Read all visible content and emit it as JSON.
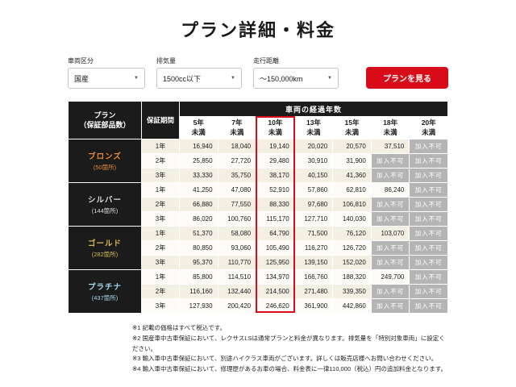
{
  "page": {
    "title": "プラン詳細・料金"
  },
  "colors": {
    "accent": "#d70c18",
    "header_bg": "#1b1b1b",
    "row_beige": "#f4efe3",
    "unavailable_bg": "#b5b5b5"
  },
  "icons": {
    "chevron_down": "▼"
  },
  "filters": [
    {
      "label": "車両区分",
      "value": "国産"
    },
    {
      "label": "排気量",
      "value": "1500cc以下"
    },
    {
      "label": "走行距離",
      "value": "～150,000km"
    }
  ],
  "view_plan_button": "プランを見る",
  "table": {
    "plan_header": "プラン\n（保証部品数）",
    "period_header": "保証期間",
    "age_header": "車両の経過年数",
    "age_columns": [
      "5年未満",
      "7年未満",
      "10年未満",
      "13年未満",
      "15年未満",
      "18年未満",
      "20年未満"
    ],
    "highlighted_column_index": 2,
    "unavailable_label": "加入不可",
    "plans": [
      {
        "name": "ブロンズ",
        "parts": "(50箇所)",
        "color": "#e6883a",
        "rows": [
          {
            "period": "1年",
            "values": [
              "16,940",
              "18,040",
              "19,140",
              "20,020",
              "20,570",
              "37,510",
              "加入不可"
            ]
          },
          {
            "period": "2年",
            "values": [
              "25,850",
              "27,720",
              "29,480",
              "30,910",
              "31,900",
              "加入不可",
              "加入不可"
            ]
          },
          {
            "period": "3年",
            "values": [
              "33,330",
              "35,750",
              "38,170",
              "40,150",
              "41,360",
              "加入不可",
              "加入不可"
            ]
          }
        ]
      },
      {
        "name": "シルバー",
        "parts": "(144箇所)",
        "color": "#dcdcdc",
        "rows": [
          {
            "period": "1年",
            "values": [
              "41,250",
              "47,080",
              "52,910",
              "57,860",
              "62,810",
              "86,240",
              "加入不可"
            ]
          },
          {
            "period": "2年",
            "values": [
              "66,880",
              "77,550",
              "88,330",
              "97,680",
              "106,810",
              "加入不可",
              "加入不可"
            ]
          },
          {
            "period": "3年",
            "values": [
              "86,020",
              "100,760",
              "115,170",
              "127,710",
              "140,030",
              "加入不可",
              "加入不可"
            ]
          }
        ]
      },
      {
        "name": "ゴールド",
        "parts": "(282箇所)",
        "color": "#d9b64b",
        "rows": [
          {
            "period": "1年",
            "values": [
              "51,370",
              "58,080",
              "64,790",
              "71,500",
              "76,120",
              "103,070",
              "加入不可"
            ]
          },
          {
            "period": "2年",
            "values": [
              "80,850",
              "93,060",
              "105,490",
              "116,270",
              "126,720",
              "加入不可",
              "加入不可"
            ]
          },
          {
            "period": "3年",
            "values": [
              "95,370",
              "110,770",
              "125,950",
              "139,150",
              "152,020",
              "加入不可",
              "加入不可"
            ]
          }
        ]
      },
      {
        "name": "プラチナ",
        "parts": "(437箇所)",
        "color": "#a3d8ee",
        "rows": [
          {
            "period": "1年",
            "values": [
              "85,800",
              "114,510",
              "134,970",
              "166,760",
              "188,320",
              "249,700",
              "加入不可"
            ]
          },
          {
            "period": "2年",
            "values": [
              "116,160",
              "132,440",
              "214,500",
              "271,480",
              "339,350",
              "加入不可",
              "加入不可"
            ]
          },
          {
            "period": "3年",
            "values": [
              "127,930",
              "200,420",
              "246,620",
              "361,900",
              "442,860",
              "加入不可",
              "加入不可"
            ]
          }
        ]
      }
    ]
  },
  "footnotes": [
    "※1 記載の価格はすべて税込です。",
    "※2 国産車中古車保証において、レクサスLSは通常プランと料金が異なります。排気量を「特別対象車両」に設定ください。",
    "※3 輸入車中古車保証において、別途ハイクラス車両がございます。詳しくは販売店様へお問い合わせください。",
    "※4 輸入車中古車保証において、修理歴があるお車の場合、料金表に一律110,000（税込）円の追加料金となります。"
  ]
}
